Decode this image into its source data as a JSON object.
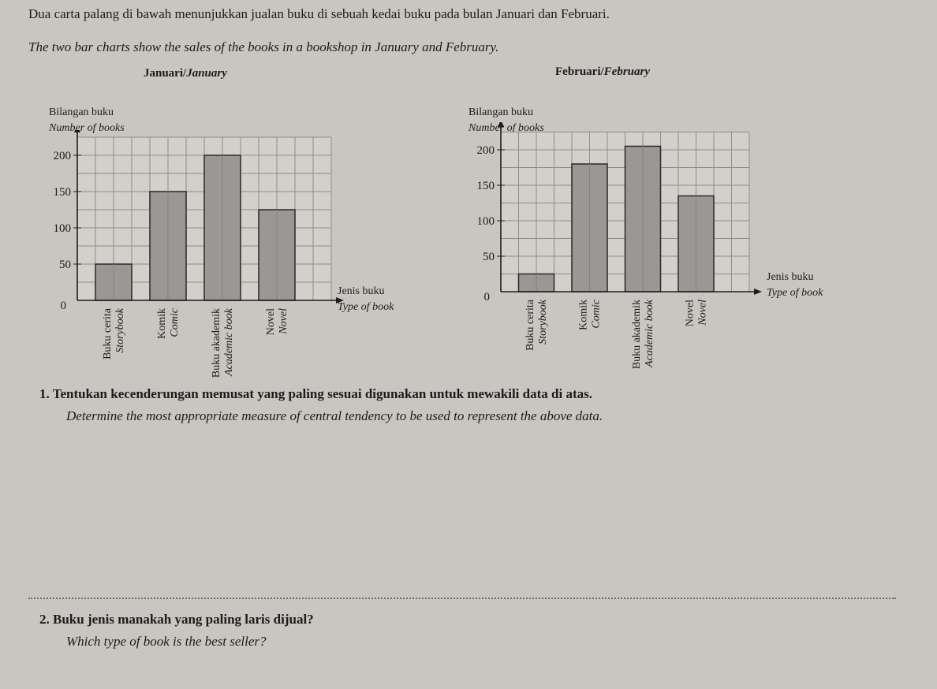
{
  "intro": {
    "ms": "Dua carta palang di bawah menunjukkan jualan buku di sebuah kedai buku pada bulan Januari dan Februari.",
    "en": "The two bar charts show the sales of the books in a bookshop in January and February."
  },
  "chart_data": [
    {
      "type": "bar",
      "title": "Januari/January",
      "title_ms": "Januari/",
      "title_en": "January",
      "ylabel_ms": "Bilangan buku",
      "ylabel_en": "Number of books",
      "xlabel_ms": "Jenis buku",
      "xlabel_en": "Type of book",
      "categories": [
        {
          "ms": "Buku cerita",
          "en": "Storybook"
        },
        {
          "ms": "Komik",
          "en": "Comic"
        },
        {
          "ms": "Buku akademik",
          "en": "Academic book"
        },
        {
          "ms": "Novel",
          "en": "Novel"
        }
      ],
      "values": [
        50,
        150,
        200,
        125
      ],
      "yticks": [
        "0",
        "50",
        "100",
        "150",
        "200"
      ],
      "ylim": [
        0,
        225
      ],
      "grid": true,
      "bar_color": "#9a9794"
    },
    {
      "type": "bar",
      "title": "Februari/February",
      "title_ms": "Februari/",
      "title_en": "February",
      "ylabel_ms": "Bilangan buku",
      "ylabel_en": "Number of books",
      "xlabel_ms": "Jenis buku",
      "xlabel_en": "Type of book",
      "categories": [
        {
          "ms": "Buku cerita",
          "en": "Storybook"
        },
        {
          "ms": "Komik",
          "en": "Comic"
        },
        {
          "ms": "Buku akademik",
          "en": "Academic book"
        },
        {
          "ms": "Novel",
          "en": "Novel"
        }
      ],
      "values": [
        25,
        180,
        205,
        135
      ],
      "yticks": [
        "0",
        "50",
        "100",
        "150",
        "200"
      ],
      "ylim": [
        0,
        225
      ],
      "grid": true,
      "bar_color": "#9a9794"
    }
  ],
  "questions": [
    {
      "num": "1.",
      "ms": "Tentukan kecenderungan memusat yang paling sesuai digunakan untuk mewakili data di atas.",
      "en": "Determine the most appropriate measure of central tendency to be used to represent the above data."
    },
    {
      "num": "2.",
      "ms": "Buku jenis manakah yang paling laris dijual?",
      "en": "Which type of book is the best seller?"
    }
  ]
}
